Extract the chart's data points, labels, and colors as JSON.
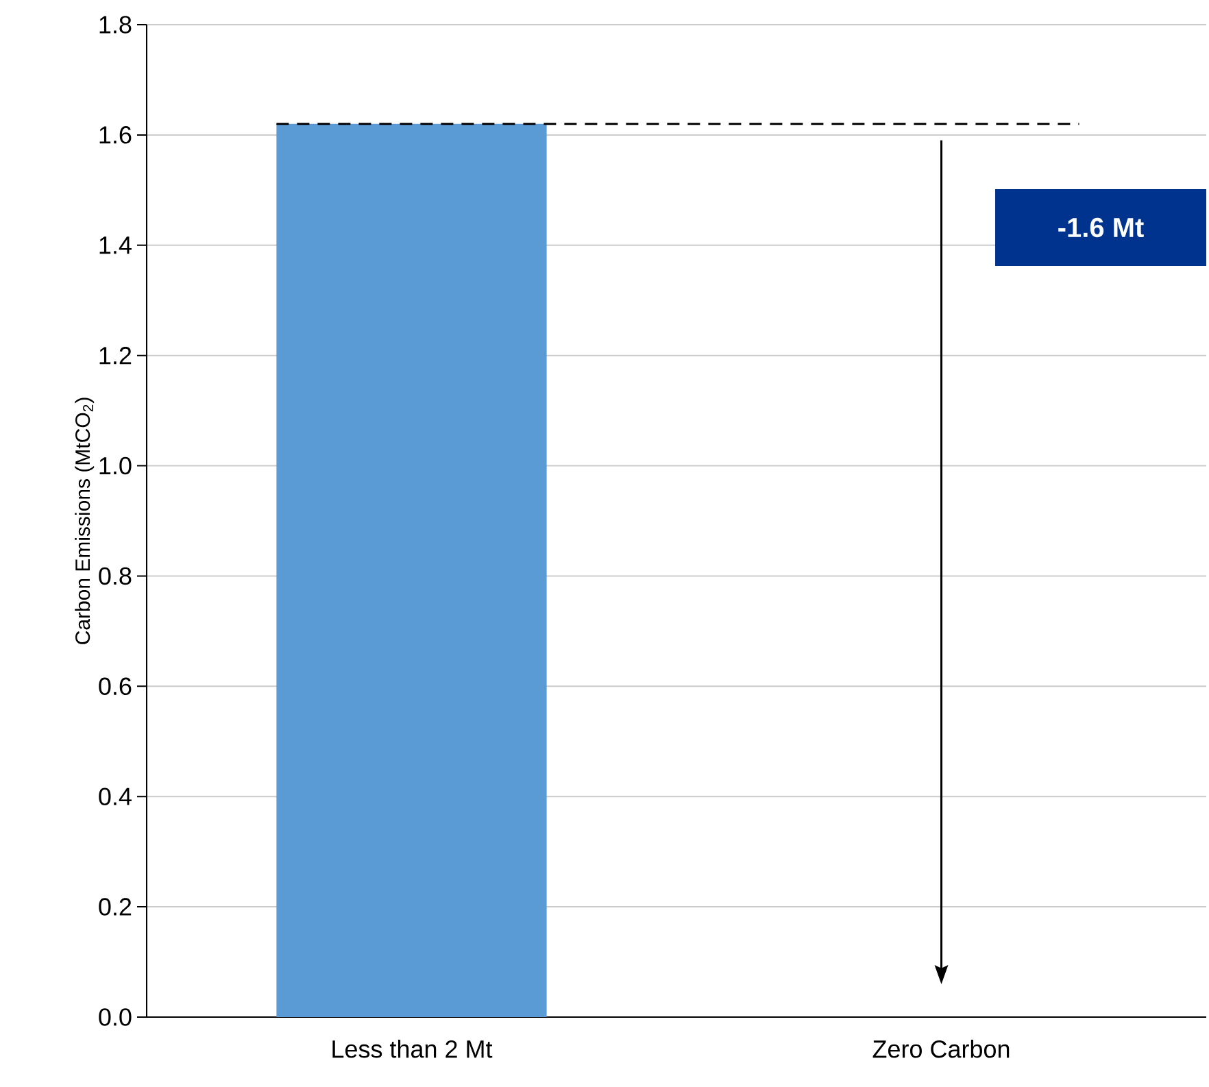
{
  "chart_data": {
    "type": "bar",
    "ylabel": "Carbon Emissions (MtCO$_{2}$)",
    "categories": [
      "Less than 2 Mt",
      "Zero Carbon"
    ],
    "values": [
      1.62,
      0
    ],
    "color": "#5b9bd5",
    "ylim": [
      0,
      1.8
    ],
    "yticks": [
      {
        "value": 0,
        "label": "0.0"
      },
      {
        "value": 0.2,
        "label": "0.2"
      },
      {
        "value": 0.4,
        "label": "0.4"
      },
      {
        "value": 0.6,
        "label": "0.6"
      },
      {
        "value": 0.8,
        "label": "0.8"
      },
      {
        "value": 1.0,
        "label": "1.0"
      },
      {
        "value": 1.2,
        "label": "1.2"
      },
      {
        "value": 1.4,
        "label": "1.4"
      },
      {
        "value": 1.6,
        "label": "1.6"
      },
      {
        "value": 1.8,
        "label": "1.8"
      }
    ],
    "grid": "y",
    "ref_lines": [
      {
        "axis": "y",
        "value": 1.62,
        "color": "#000000",
        "line_style": "dashed"
      }
    ],
    "annotations": [
      "-1.6 Mt"
    ]
  }
}
